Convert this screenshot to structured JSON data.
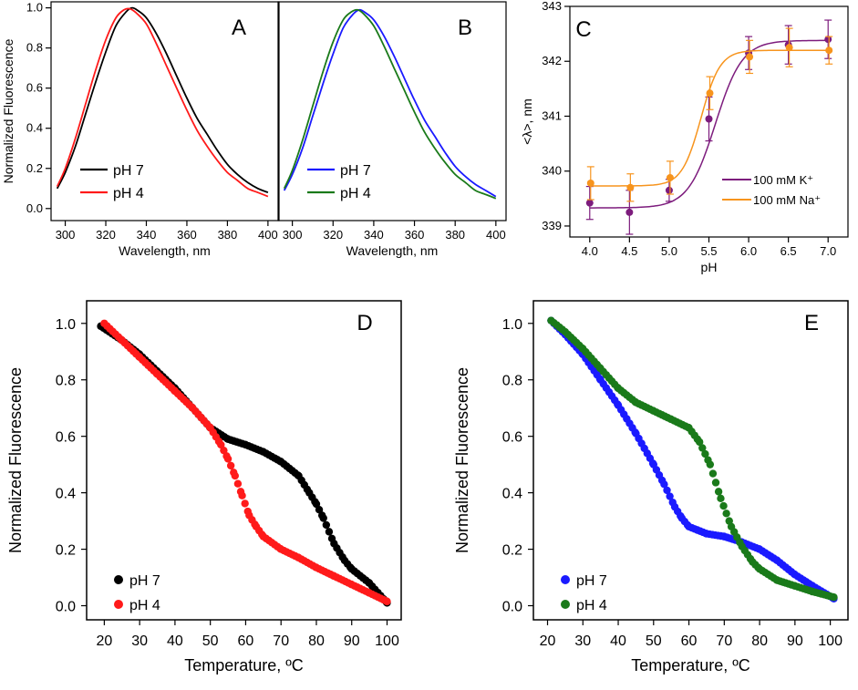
{
  "colors": {
    "black": "#000000",
    "red": "#ff1a1a",
    "blue": "#1a1aff",
    "green": "#1a7a1a",
    "purple": "#7d1c7d",
    "orange": "#f7941d"
  },
  "chart_data": [
    {
      "id": "A",
      "type": "line",
      "letter": "A",
      "xlabel": "Wavelength, nm",
      "ylabel": "Normalized Fluorescence",
      "xlim": [
        293,
        405
      ],
      "ylim": [
        -0.06,
        1.03
      ],
      "xticks": [
        300,
        320,
        340,
        360,
        380,
        400
      ],
      "yticks": [
        0.0,
        0.2,
        0.4,
        0.6,
        0.8,
        1.0
      ],
      "ytick_labels": [
        "0.0",
        "0.2",
        "0.4",
        "0.6",
        "0.8",
        "1.0"
      ],
      "legend": "bottom-left",
      "series": [
        {
          "name": "pH 7",
          "color": "black",
          "x": [
            296,
            300,
            305,
            310,
            315,
            320,
            325,
            330,
            333,
            336,
            340,
            345,
            350,
            355,
            360,
            365,
            370,
            375,
            380,
            385,
            390,
            395,
            400
          ],
          "y": [
            0.1,
            0.18,
            0.31,
            0.47,
            0.63,
            0.78,
            0.91,
            0.98,
            1.0,
            0.985,
            0.95,
            0.87,
            0.77,
            0.66,
            0.55,
            0.45,
            0.37,
            0.29,
            0.22,
            0.17,
            0.13,
            0.1,
            0.08
          ]
        },
        {
          "name": "pH 4",
          "color": "red",
          "x": [
            296,
            300,
            305,
            310,
            315,
            320,
            325,
            329,
            332,
            335,
            340,
            345,
            350,
            355,
            360,
            365,
            370,
            375,
            380,
            385,
            390,
            395,
            400
          ],
          "y": [
            0.11,
            0.2,
            0.35,
            0.52,
            0.69,
            0.84,
            0.95,
            0.99,
            0.995,
            0.975,
            0.92,
            0.82,
            0.71,
            0.6,
            0.49,
            0.39,
            0.31,
            0.24,
            0.18,
            0.14,
            0.1,
            0.08,
            0.06
          ]
        }
      ]
    },
    {
      "id": "B",
      "type": "line",
      "letter": "B",
      "xlabel": "Wavelength, nm",
      "ylabel": "",
      "xlim": [
        293,
        405
      ],
      "ylim": [
        -0.06,
        1.03
      ],
      "xticks": [
        300,
        320,
        340,
        360,
        380,
        400
      ],
      "yticks": [],
      "ytick_labels": [],
      "legend": "bottom-left",
      "series": [
        {
          "name": "pH 7",
          "color": "blue",
          "x": [
            296,
            300,
            305,
            310,
            315,
            320,
            325,
            330,
            333,
            336,
            340,
            345,
            350,
            355,
            360,
            365,
            370,
            375,
            380,
            385,
            390,
            395,
            400
          ],
          "y": [
            0.09,
            0.17,
            0.3,
            0.46,
            0.62,
            0.77,
            0.9,
            0.97,
            0.99,
            0.975,
            0.94,
            0.86,
            0.76,
            0.65,
            0.54,
            0.44,
            0.36,
            0.28,
            0.21,
            0.16,
            0.12,
            0.09,
            0.06
          ]
        },
        {
          "name": "pH 4",
          "color": "green",
          "x": [
            296,
            300,
            305,
            310,
            315,
            320,
            325,
            329,
            332,
            335,
            340,
            345,
            350,
            355,
            360,
            365,
            370,
            375,
            380,
            385,
            390,
            395,
            400
          ],
          "y": [
            0.1,
            0.19,
            0.34,
            0.51,
            0.68,
            0.83,
            0.94,
            0.98,
            0.99,
            0.97,
            0.91,
            0.81,
            0.7,
            0.59,
            0.48,
            0.38,
            0.3,
            0.23,
            0.17,
            0.13,
            0.09,
            0.07,
            0.05
          ]
        }
      ]
    },
    {
      "id": "C",
      "type": "scatter",
      "letter": "C",
      "xlabel": "pH",
      "ylabel": "<λ>, nm",
      "xlim": [
        3.75,
        7.25
      ],
      "ylim": [
        338.8,
        343.0
      ],
      "xticks": [
        4.0,
        4.5,
        5.0,
        5.5,
        6.0,
        6.5,
        7.0
      ],
      "xtick_labels": [
        "4.0",
        "4.5",
        "5.0",
        "5.5",
        "6.0",
        "6.5",
        "7.0"
      ],
      "yticks": [
        339,
        340,
        341,
        342,
        343
      ],
      "ytick_labels": [
        "339",
        "340",
        "341",
        "342",
        "343"
      ],
      "legend": "bottom-right",
      "series": [
        {
          "name": "100 mM K⁺",
          "color": "purple",
          "x": [
            4.0,
            4.5,
            5.0,
            5.5,
            6.0,
            6.5,
            7.0
          ],
          "y": [
            339.42,
            339.25,
            339.65,
            340.95,
            342.15,
            342.3,
            342.4
          ],
          "err": [
            0.3,
            0.4,
            0.2,
            0.4,
            0.3,
            0.35,
            0.35
          ],
          "fit_midpoint": 5.58,
          "fit_low": 339.33,
          "fit_high": 342.38,
          "fit_slope": 0.17
        },
        {
          "name": "100 mM Na⁺",
          "color": "orange",
          "x": [
            4.0,
            4.5,
            5.0,
            5.5,
            6.0,
            6.5,
            7.0
          ],
          "y": [
            339.78,
            339.7,
            339.88,
            341.42,
            342.08,
            342.25,
            342.2
          ],
          "err": [
            0.3,
            0.25,
            0.3,
            0.3,
            0.3,
            0.35,
            0.25
          ],
          "fit_midpoint": 5.4,
          "fit_low": 339.73,
          "fit_high": 342.2,
          "fit_slope": 0.12
        }
      ]
    },
    {
      "id": "D",
      "type": "scatter",
      "letter": "D",
      "xlabel": "Temperature, ºC",
      "ylabel": "Normalized Fluorescence",
      "xlim": [
        15,
        104
      ],
      "ylim": [
        -0.05,
        1.08
      ],
      "xticks": [
        20,
        30,
        40,
        50,
        60,
        70,
        80,
        90,
        100
      ],
      "yticks": [
        0.0,
        0.2,
        0.4,
        0.6,
        0.8,
        1.0
      ],
      "ytick_labels": [
        "0.0",
        "0.2",
        "0.4",
        "0.6",
        "0.8",
        "1.0"
      ],
      "legend": "bottom-left",
      "series": [
        {
          "name": "pH 7",
          "color": "black",
          "x": [
            19,
            25,
            30,
            35,
            40,
            45,
            50,
            55,
            60,
            65,
            70,
            75,
            78,
            80,
            82,
            85,
            88,
            90,
            95,
            100
          ],
          "y": [
            0.99,
            0.94,
            0.89,
            0.83,
            0.77,
            0.7,
            0.63,
            0.59,
            0.57,
            0.545,
            0.51,
            0.46,
            0.4,
            0.36,
            0.31,
            0.22,
            0.16,
            0.13,
            0.08,
            0.01
          ]
        },
        {
          "name": "pH 4",
          "color": "red",
          "x": [
            20,
            25,
            30,
            35,
            40,
            45,
            50,
            53,
            55,
            57,
            59,
            61,
            63,
            65,
            70,
            75,
            80,
            85,
            90,
            95,
            100
          ],
          "y": [
            1.0,
            0.94,
            0.88,
            0.82,
            0.76,
            0.7,
            0.63,
            0.57,
            0.52,
            0.46,
            0.39,
            0.32,
            0.28,
            0.245,
            0.2,
            0.17,
            0.135,
            0.105,
            0.075,
            0.045,
            0.015
          ]
        }
      ]
    },
    {
      "id": "E",
      "type": "scatter",
      "letter": "E",
      "xlabel": "Temperature, ºC",
      "ylabel": "Normalized Fluorescence",
      "xlim": [
        16,
        105
      ],
      "ylim": [
        -0.05,
        1.08
      ],
      "xticks": [
        20,
        30,
        40,
        50,
        60,
        70,
        80,
        90,
        100
      ],
      "yticks": [
        0.0,
        0.2,
        0.4,
        0.6,
        0.8,
        1.0
      ],
      "ytick_labels": [
        "0.0",
        "0.2",
        "0.4",
        "0.6",
        "0.8",
        "1.0"
      ],
      "legend": "bottom-left",
      "series": [
        {
          "name": "pH 7",
          "color": "blue",
          "x": [
            21,
            25,
            30,
            35,
            40,
            45,
            50,
            53,
            56,
            58,
            60,
            65,
            70,
            75,
            80,
            85,
            90,
            95,
            101
          ],
          "y": [
            1.01,
            0.96,
            0.89,
            0.8,
            0.71,
            0.61,
            0.5,
            0.43,
            0.35,
            0.31,
            0.28,
            0.255,
            0.245,
            0.225,
            0.2,
            0.16,
            0.11,
            0.07,
            0.025
          ]
        },
        {
          "name": "pH 4",
          "color": "green",
          "x": [
            21,
            25,
            30,
            35,
            40,
            45,
            50,
            55,
            60,
            63,
            66,
            69,
            72,
            75,
            78,
            80,
            85,
            90,
            95,
            101
          ],
          "y": [
            1.01,
            0.97,
            0.91,
            0.84,
            0.77,
            0.72,
            0.69,
            0.66,
            0.63,
            0.58,
            0.5,
            0.38,
            0.28,
            0.21,
            0.155,
            0.13,
            0.09,
            0.07,
            0.05,
            0.03
          ]
        }
      ]
    }
  ]
}
